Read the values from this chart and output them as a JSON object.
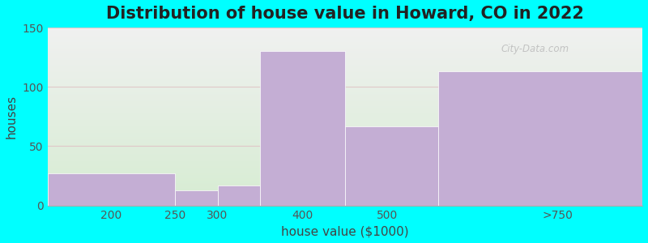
{
  "title": "Distribution of house value in Howard, CO in 2022",
  "xlabel": "house value ($1000)",
  "ylabel": "houses",
  "bin_edges": [
    100,
    250,
    300,
    350,
    450,
    560,
    800
  ],
  "tick_positions": [
    175,
    250,
    300,
    400,
    500,
    700
  ],
  "tick_labels": [
    "200",
    "250",
    "300",
    "400",
    "500",
    ">750"
  ],
  "values": [
    27,
    13,
    17,
    130,
    67,
    113
  ],
  "bar_color": "#c4aed4",
  "background_color": "#00FFFF",
  "grad_bottom_color": "#d6ecd2",
  "grad_top_color": "#f0f0f0",
  "ylim": [
    0,
    150
  ],
  "yticks": [
    0,
    50,
    100,
    150
  ],
  "grid_color": "#e0c8c8",
  "title_fontsize": 15,
  "label_fontsize": 11,
  "tick_fontsize": 10,
  "watermark": "City-Data.com"
}
